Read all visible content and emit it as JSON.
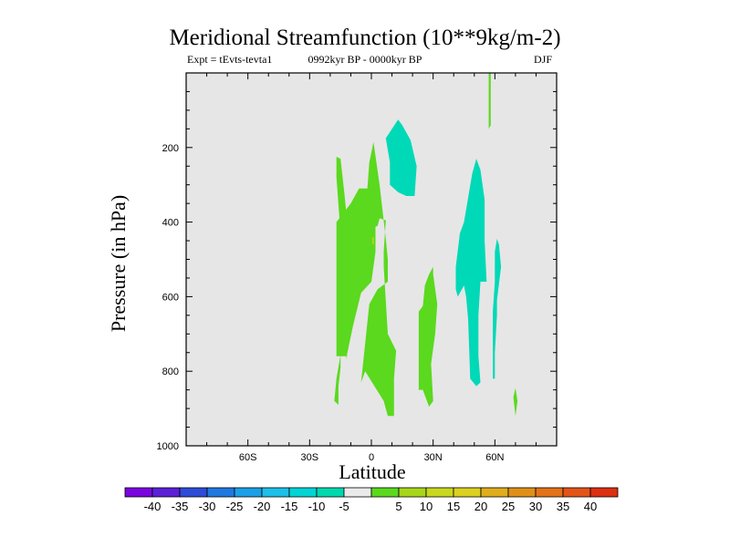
{
  "chart_data": {
    "type": "contour",
    "title": "Meridional Streamfunction (10**9kg/m-2)",
    "subtitle_left": "Expt = tEvts-tevta1",
    "subtitle_center": "0992kyr BP - 0000kyr BP",
    "subtitle_right": "DJF",
    "xlabel": "Latitude",
    "ylabel": "Pressure (in hPa)",
    "xlim": [
      -90,
      90
    ],
    "ylim": [
      0,
      1000
    ],
    "y_inverted": true,
    "x_ticks": [
      {
        "value": -60,
        "label": "60S"
      },
      {
        "value": -30,
        "label": "30S"
      },
      {
        "value": 0,
        "label": "0"
      },
      {
        "value": 30,
        "label": "30N"
      },
      {
        "value": 60,
        "label": "60N"
      }
    ],
    "y_ticks": [
      {
        "value": 200,
        "label": "200"
      },
      {
        "value": 400,
        "label": "400"
      },
      {
        "value": 600,
        "label": "600"
      },
      {
        "value": 800,
        "label": "800"
      },
      {
        "value": 1000,
        "label": "1000"
      }
    ],
    "background_color": "#e6e6e6",
    "regions": [
      {
        "name": "positive-band-20S-0",
        "level": "0 to 5",
        "color": "#5ad91e",
        "points": [
          [
            -17,
            225
          ],
          [
            -15,
            230
          ],
          [
            -13,
            330
          ],
          [
            -11,
            440
          ],
          [
            -5,
            540
          ],
          [
            -1,
            240
          ],
          [
            1,
            185
          ],
          [
            4,
            300
          ],
          [
            7,
            445
          ],
          [
            8,
            500
          ],
          [
            8,
            560
          ],
          [
            3,
            580
          ],
          [
            -1,
            620
          ],
          [
            -5,
            830
          ],
          [
            -3,
            800
          ],
          [
            6,
            880
          ],
          [
            8,
            920
          ],
          [
            11,
            920
          ],
          [
            11,
            820
          ],
          [
            12,
            745
          ],
          [
            8,
            700
          ],
          [
            6,
            520
          ],
          [
            6,
            480
          ],
          [
            7,
            395
          ],
          [
            4,
            390
          ],
          [
            3,
            410
          ],
          [
            -2,
            420
          ],
          [
            -3,
            430
          ],
          [
            -8,
            580
          ],
          [
            -11,
            690
          ],
          [
            -12,
            770
          ],
          [
            -13,
            680
          ],
          [
            -14,
            725
          ],
          [
            -17,
            820
          ],
          [
            -18,
            880
          ],
          [
            -16,
            890
          ],
          [
            -16,
            840
          ],
          [
            -15,
            790
          ],
          [
            -15,
            740
          ],
          [
            -14,
            590
          ],
          [
            -15,
            430
          ],
          [
            -17,
            280
          ]
        ]
      },
      {
        "name": "positive-core-20S-0",
        "level": "0 to 5",
        "color": "#5ad91e",
        "points": [
          [
            -17,
            400
          ],
          [
            -10,
            350
          ],
          [
            -6,
            310
          ],
          [
            -1,
            310
          ],
          [
            2,
            390
          ],
          [
            2,
            480
          ],
          [
            0,
            560
          ],
          [
            -5,
            590
          ],
          [
            -9,
            680
          ],
          [
            -12,
            760
          ],
          [
            -17,
            760
          ],
          [
            -17,
            600
          ]
        ]
      },
      {
        "name": "positive-5to10-spot",
        "level": "5 to 10",
        "color": "#a8d61a",
        "points": [
          [
            0.3,
            440
          ],
          [
            1.2,
            440
          ],
          [
            1.2,
            460
          ],
          [
            0.3,
            460
          ]
        ]
      },
      {
        "name": "positive-band-25N",
        "level": "0 to 5",
        "color": "#5ad91e",
        "points": [
          [
            23,
            640
          ],
          [
            25,
            625
          ],
          [
            26,
            570
          ],
          [
            28,
            540
          ],
          [
            30,
            520
          ],
          [
            30,
            540
          ],
          [
            32,
            620
          ],
          [
            31,
            700
          ],
          [
            29,
            780
          ],
          [
            30,
            880
          ],
          [
            28,
            895
          ],
          [
            25,
            850
          ],
          [
            23,
            850
          ]
        ]
      },
      {
        "name": "positive-sliver-57N",
        "level": "0 to 5",
        "color": "#5ad91e",
        "points": [
          [
            57,
            0
          ],
          [
            58,
            0
          ],
          [
            58,
            140
          ],
          [
            57,
            150
          ]
        ]
      },
      {
        "name": "positive-spot-70N",
        "level": "0 to 5",
        "color": "#5ad91e",
        "points": [
          [
            69,
            870
          ],
          [
            70,
            845
          ],
          [
            71,
            880
          ],
          [
            70,
            920
          ]
        ]
      },
      {
        "name": "negative-cell-10N-upper",
        "level": "-5 to 0",
        "color": "#00d9b7",
        "points": [
          [
            7,
            175
          ],
          [
            13,
            125
          ],
          [
            15,
            140
          ],
          [
            19,
            180
          ],
          [
            22,
            250
          ],
          [
            21,
            330
          ],
          [
            17,
            330
          ],
          [
            13,
            320
          ],
          [
            9,
            300
          ],
          [
            9,
            240
          ]
        ]
      },
      {
        "name": "negative-cell-45N",
        "level": "-5 to 0",
        "color": "#00d9b7",
        "points": [
          [
            41,
            580
          ],
          [
            41,
            520
          ],
          [
            43,
            430
          ],
          [
            45,
            400
          ],
          [
            49,
            270
          ],
          [
            51,
            230
          ],
          [
            53,
            260
          ],
          [
            55,
            340
          ],
          [
            55,
            450
          ],
          [
            56,
            560
          ],
          [
            53,
            560
          ],
          [
            52,
            650
          ],
          [
            52,
            760
          ],
          [
            53,
            830
          ],
          [
            51,
            840
          ],
          [
            48,
            820
          ],
          [
            47,
            660
          ],
          [
            46,
            600
          ],
          [
            45,
            570
          ],
          [
            42,
            600
          ]
        ]
      },
      {
        "name": "negative-strip-60N",
        "level": "-5 to 0",
        "color": "#00d9b7",
        "points": [
          [
            60,
            480
          ],
          [
            61,
            445
          ],
          [
            62,
            460
          ],
          [
            63,
            520
          ],
          [
            61,
            610
          ],
          [
            61,
            650
          ],
          [
            60,
            750
          ],
          [
            60,
            820
          ],
          [
            59,
            820
          ],
          [
            59,
            640
          ],
          [
            60,
            560
          ]
        ]
      }
    ],
    "colorbar": {
      "colors": [
        "#7a05e0",
        "#5b20d6",
        "#2d4dd8",
        "#1f78e0",
        "#1aa0e6",
        "#1cc0e8",
        "#00d4d4",
        "#00d8b0",
        "#eaeaea",
        "#5ad91e",
        "#a8d61a",
        "#c8d81e",
        "#dcd020",
        "#e0ae1a",
        "#e09018",
        "#e47218",
        "#e45418",
        "#dc3010"
      ],
      "labels": [
        "-40",
        "-35",
        "-30",
        "-25",
        "-20",
        "-15",
        "-10",
        "-5",
        "5",
        "10",
        "15",
        "20",
        "25",
        "30",
        "35",
        "40"
      ]
    }
  }
}
